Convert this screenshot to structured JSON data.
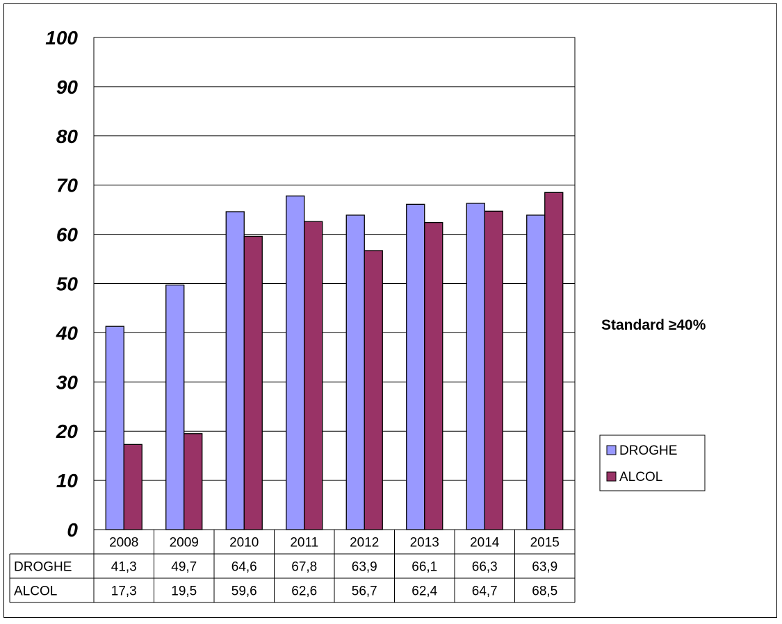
{
  "chart_data": {
    "type": "bar",
    "title": "",
    "xlabel": "",
    "ylabel": "",
    "ylim": [
      0,
      100
    ],
    "yticks": [
      "0",
      "10",
      "20",
      "30",
      "40",
      "50",
      "60",
      "70",
      "80",
      "90",
      "100"
    ],
    "grid": true,
    "legend_position": "right",
    "categories": [
      "2008",
      "2009",
      "2010",
      "2011",
      "2012",
      "2013",
      "2014",
      "2015"
    ],
    "series": [
      {
        "name": "DROGHE",
        "color": "#9999FF",
        "values": [
          41.3,
          49.7,
          64.6,
          67.8,
          63.9,
          66.1,
          66.3,
          63.9
        ],
        "labels": [
          "41,3",
          "49,7",
          "64,6",
          "67,8",
          "63,9",
          "66,1",
          "66,3",
          "63,9"
        ]
      },
      {
        "name": "ALCOL",
        "color": "#993366",
        "values": [
          17.3,
          19.5,
          59.6,
          62.6,
          56.7,
          62.4,
          64.7,
          68.5
        ],
        "labels": [
          "17,3",
          "19,5",
          "59,6",
          "62,6",
          "56,7",
          "62,4",
          "64,7",
          "68,5"
        ]
      }
    ],
    "annotation": "Standard ≥40%"
  }
}
